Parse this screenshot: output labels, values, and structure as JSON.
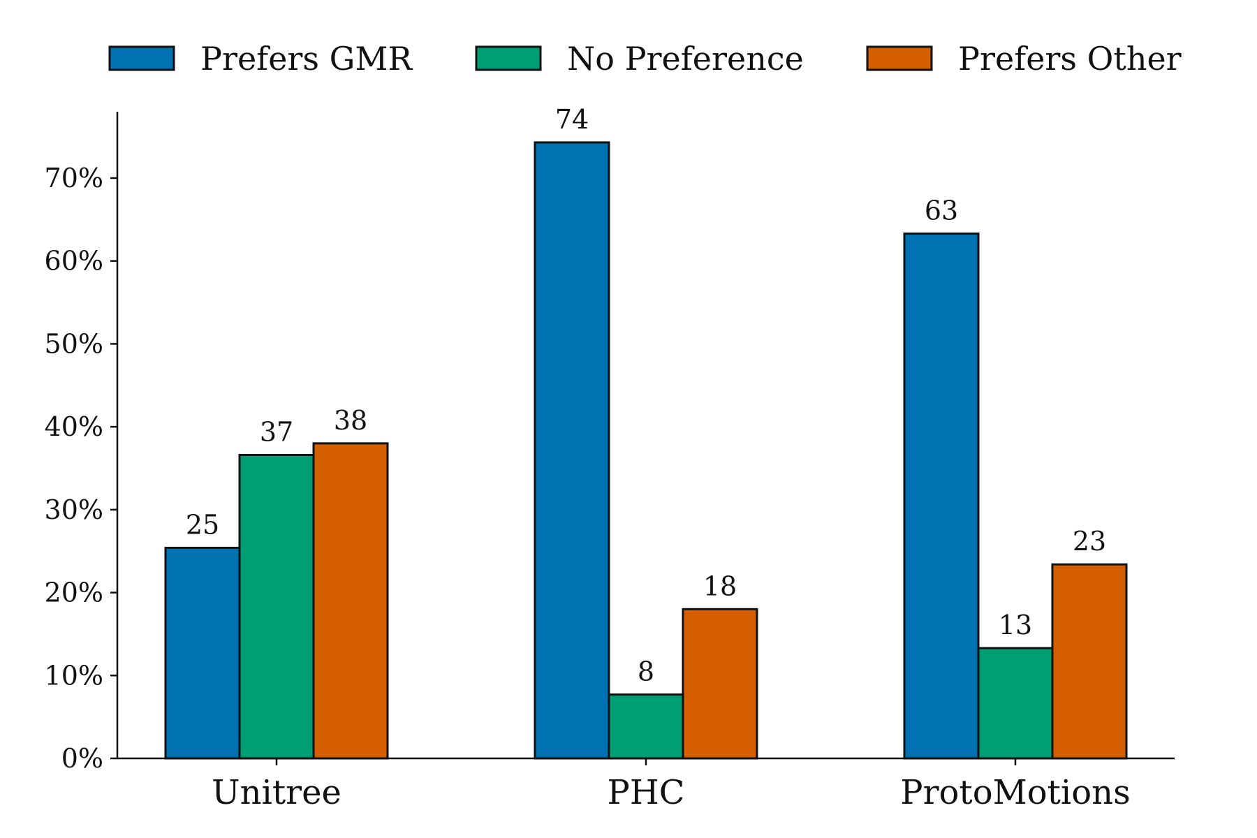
{
  "chart_data": {
    "type": "bar",
    "categories": [
      "Unitree",
      "PHC",
      "ProtoMotions"
    ],
    "series": [
      {
        "name": "Prefers GMR",
        "color": "#0072B2",
        "values": [
          25.4,
          74.3,
          63.3
        ]
      },
      {
        "name": "No Preference",
        "color": "#009E73",
        "values": [
          36.6,
          7.7,
          13.3
        ]
      },
      {
        "name": "Prefers Other",
        "color": "#D55E00",
        "values": [
          38.0,
          18.0,
          23.4
        ]
      }
    ],
    "data_labels": [
      [
        "25",
        "74",
        "63"
      ],
      [
        "37",
        "8",
        "13"
      ],
      [
        "38",
        "18",
        "23"
      ]
    ],
    "yticks": [
      0,
      10,
      20,
      30,
      40,
      50,
      60,
      70
    ],
    "ytick_labels": [
      "0%",
      "10%",
      "20%",
      "30%",
      "40%",
      "50%",
      "60%",
      "70%"
    ],
    "ylim": [
      0,
      78
    ],
    "title": "",
    "xlabel": "",
    "ylabel": "",
    "legend": "top",
    "grid": false
  }
}
